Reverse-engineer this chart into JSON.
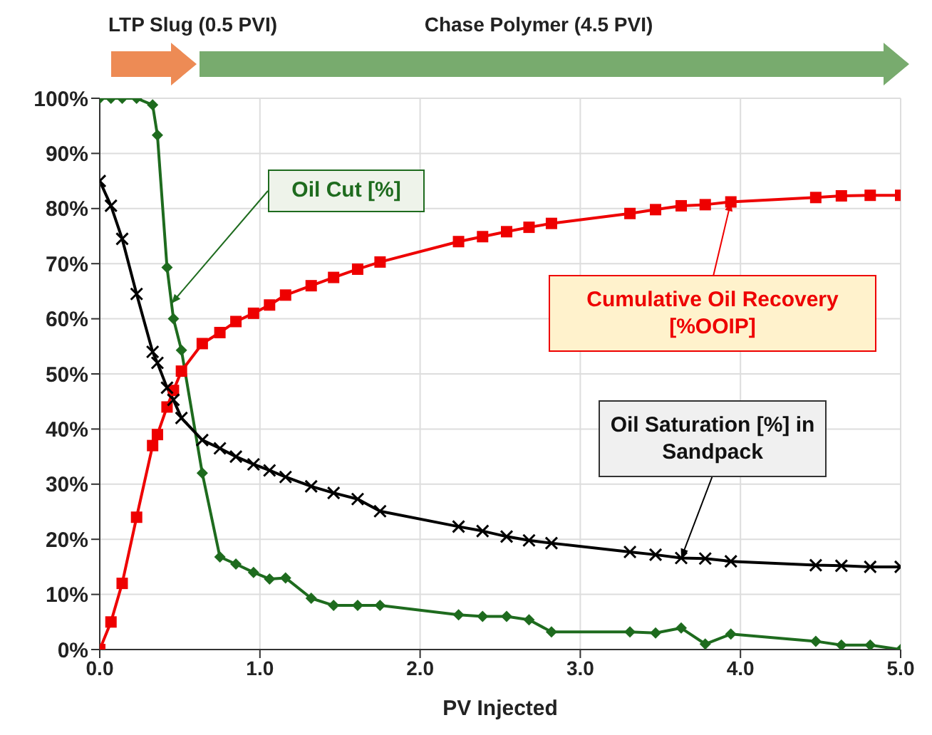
{
  "chart_data": {
    "type": "line",
    "xlabel": "PV Injected",
    "x": [
      0,
      0.07,
      0.14,
      0.23,
      0.33,
      0.36,
      0.42,
      0.46,
      0.51,
      0.64,
      0.75,
      0.85,
      0.96,
      1.06,
      1.16,
      1.32,
      1.46,
      1.61,
      1.75,
      2.24,
      2.39,
      2.54,
      2.68,
      2.82,
      3.31,
      3.47,
      3.63,
      3.78,
      3.94,
      4.47,
      4.63,
      4.81,
      5.0
    ],
    "series": [
      {
        "name": "Oil Cut [%]",
        "color": "#1e6b1e",
        "marker": "diamond",
        "values": [
          100,
          100,
          100,
          100,
          98.8,
          93.3,
          69.3,
          60,
          54.3,
          32,
          16.8,
          15.5,
          14,
          12.8,
          13,
          9.3,
          8,
          8,
          8,
          6.3,
          6,
          6,
          5.4,
          3.2,
          3.2,
          3,
          3.9,
          1,
          2.8,
          1.5,
          0.8,
          0.8,
          0
        ]
      },
      {
        "name": "Cumulative Oil Recovery [%OOIP]",
        "color": "#ee0000",
        "marker": "square",
        "values": [
          0,
          5,
          12,
          24,
          37,
          39,
          44,
          47,
          50.5,
          55.5,
          57.5,
          59.5,
          61,
          62.5,
          64.3,
          66,
          67.5,
          69,
          70.3,
          74,
          74.9,
          75.8,
          76.6,
          77.3,
          79.1,
          79.8,
          80.5,
          80.7,
          81.2,
          82,
          82.3,
          82.4,
          82.4
        ]
      },
      {
        "name": "Oil Saturation [%] in Sandpack",
        "color": "#000000",
        "marker": "cross",
        "values": [
          85,
          80.5,
          74.5,
          64.5,
          54,
          52,
          47.5,
          45.3,
          42,
          38,
          36.5,
          35,
          33.6,
          32.5,
          31.3,
          29.6,
          28.4,
          27.3,
          25.1,
          22.3,
          21.5,
          20.5,
          19.8,
          19.3,
          17.7,
          17.2,
          16.6,
          16.5,
          16,
          15.3,
          15.2,
          15,
          15
        ]
      }
    ],
    "xlim": [
      0,
      5
    ],
    "xticks": [
      {
        "value": 0,
        "label": "0.0"
      },
      {
        "value": 1,
        "label": "1.0"
      },
      {
        "value": 2,
        "label": "2.0"
      },
      {
        "value": 3,
        "label": "3.0"
      },
      {
        "value": 4,
        "label": "4.0"
      },
      {
        "value": 5,
        "label": "5.0"
      }
    ],
    "ylim": [
      0,
      100
    ],
    "yticks": [
      {
        "value": 0,
        "label": "0%"
      },
      {
        "value": 10,
        "label": "10%"
      },
      {
        "value": 20,
        "label": "20%"
      },
      {
        "value": 30,
        "label": "30%"
      },
      {
        "value": 40,
        "label": "40%"
      },
      {
        "value": 50,
        "label": "50%"
      },
      {
        "value": 60,
        "label": "60%"
      },
      {
        "value": 70,
        "label": "70%"
      },
      {
        "value": 80,
        "label": "80%"
      },
      {
        "value": 90,
        "label": "90%"
      },
      {
        "value": 100,
        "label": "100%"
      }
    ],
    "annotations": [
      "LTP Slug (0.5 PVI)",
      "Chase Polymer (4.5 PVI)"
    ],
    "grid": true,
    "line_style": "solid"
  }
}
